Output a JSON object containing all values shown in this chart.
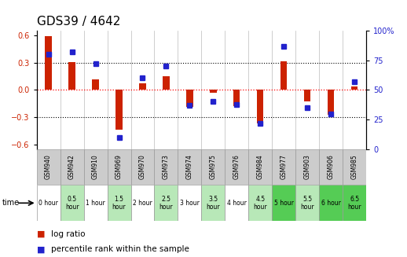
{
  "title": "GDS39 / 4642",
  "samples": [
    "GSM940",
    "GSM942",
    "GSM910",
    "GSM969",
    "GSM970",
    "GSM973",
    "GSM974",
    "GSM975",
    "GSM976",
    "GSM984",
    "GSM977",
    "GSM903",
    "GSM906",
    "GSM985"
  ],
  "times": [
    "0 hour",
    "0.5\nhour",
    "1 hour",
    "1.5\nhour",
    "2 hour",
    "2.5\nhour",
    "3 hour",
    "3.5\nhour",
    "4 hour",
    "4.5\nhour",
    "5 hour",
    "5.5\nhour",
    "6 hour",
    "6.5\nhour"
  ],
  "log_ratio": [
    0.595,
    0.305,
    0.115,
    -0.435,
    0.07,
    0.155,
    -0.185,
    -0.035,
    -0.175,
    -0.365,
    0.315,
    -0.13,
    -0.27,
    0.04
  ],
  "percentile": [
    80,
    82,
    72,
    10,
    60,
    70,
    37,
    40,
    38,
    22,
    87,
    35,
    30,
    57
  ],
  "time_cell_colors": [
    "#ffffff",
    "#b8e8b8",
    "#ffffff",
    "#b8e8b8",
    "#ffffff",
    "#b8e8b8",
    "#ffffff",
    "#b8e8b8",
    "#ffffff",
    "#b8e8b8",
    "#55cc55",
    "#b8e8b8",
    "#55cc55",
    "#55cc55"
  ],
  "bar_color": "#cc2200",
  "dot_color": "#2222cc",
  "ylim_left": [
    -0.65,
    0.65
  ],
  "ylim_right": [
    0,
    100
  ],
  "title_fontsize": 11,
  "tick_fontsize": 7,
  "sample_row_color": "#cccccc",
  "sample_row_edge": "#999999",
  "time_row_edge": "#999999"
}
